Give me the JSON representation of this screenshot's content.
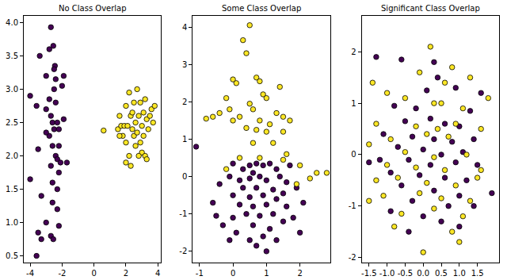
{
  "chart_data": [
    {
      "type": "scatter",
      "title": "No Class Overlap",
      "marker": "circle",
      "xlim": [
        -4.4,
        4.2
      ],
      "xticks": [
        -4,
        -2,
        0,
        2,
        4
      ],
      "ylim": [
        0.4,
        4.1
      ],
      "yticks": [
        0.5,
        {
          "value": 1.0,
          "label": "1.0"
        },
        1.5,
        {
          "value": 2.0,
          "label": "2.0"
        },
        2.5,
        {
          "value": 3.0,
          "label": "3.0"
        },
        3.5,
        {
          "value": 4.0,
          "label": "4.0"
        }
      ],
      "series": [
        {
          "color": "#440154",
          "x": [
            -2.7,
            -2.55,
            -3.4,
            -2.8,
            -2.45,
            -2.5,
            -2.4,
            -1.9,
            -3.0,
            -2.5,
            -2.0,
            -4.0,
            -3.6,
            -2.8,
            -2.4,
            -3.0,
            -2.7,
            -2.6,
            -2.3,
            -1.9,
            -2.5,
            -2.2,
            -2.8,
            -3.0,
            -2.6,
            -2.2,
            -2.4,
            -3.5,
            -2.3,
            -2.1,
            -2.7,
            -1.7,
            -2.2,
            -2.6,
            -4.0,
            -3.3,
            -2.3,
            -2.6,
            -2.3,
            -3.0,
            -2.2,
            -3.5,
            -2.7,
            -3.3,
            -2.55,
            -3.6
          ],
          "values": [
            3.93,
            3.65,
            3.5,
            3.6,
            3.35,
            3.3,
            3.15,
            3.2,
            3.2,
            3.0,
            3.05,
            2.9,
            2.75,
            2.85,
            2.8,
            2.7,
            2.6,
            2.5,
            2.5,
            2.55,
            2.4,
            2.4,
            2.3,
            2.35,
            2.15,
            2.15,
            2.0,
            2.1,
            1.95,
            1.9,
            1.85,
            1.9,
            1.75,
            1.6,
            1.65,
            1.4,
            1.5,
            1.3,
            1.2,
            1.0,
            0.95,
            0.85,
            0.8,
            0.75,
            0.75,
            0.5
          ]
        },
        {
          "color": "#fde725",
          "x": [
            0.6,
            1.5,
            1.6,
            1.7,
            1.8,
            1.9,
            2.0,
            2.0,
            2.1,
            2.2,
            2.2,
            2.3,
            2.4,
            2.5,
            2.5,
            2.6,
            2.6,
            2.7,
            2.7,
            2.8,
            2.9,
            2.9,
            3.0,
            3.0,
            3.1,
            3.1,
            3.2,
            3.2,
            3.3,
            3.4,
            3.5,
            3.6,
            3.8,
            2.0,
            2.3,
            1.6,
            2.4,
            3.3,
            2.8,
            3.7
          ],
          "values": [
            2.38,
            2.4,
            2.6,
            2.45,
            2.3,
            2.45,
            2.75,
            2.2,
            2.45,
            2.95,
            2.0,
            2.6,
            2.4,
            2.8,
            2.3,
            2.15,
            2.5,
            3.0,
            2.35,
            2.6,
            2.2,
            2.8,
            2.45,
            2.05,
            2.65,
            2.3,
            2.85,
            2.0,
            2.55,
            2.4,
            2.6,
            2.7,
            2.75,
            1.9,
            1.85,
            2.3,
            2.65,
            1.95,
            2.0,
            2.5
          ]
        }
      ]
    },
    {
      "type": "scatter",
      "title": "Some Class Overlap",
      "marker": "circle",
      "xlim": [
        -1.2,
        2.9
      ],
      "xticks": [
        -1,
        0,
        1,
        2
      ],
      "ylim": [
        -2.3,
        4.3
      ],
      "yticks": [
        -2,
        -1,
        0,
        1,
        2,
        3,
        4
      ],
      "series": [
        {
          "color": "#440154",
          "x": [
            -1.1,
            0.0,
            0.5,
            0.7,
            0.9,
            1.1,
            0.3,
            0.6,
            1.3,
            1.7,
            -0.1,
            0.2,
            0.5,
            0.8,
            1.0,
            1.4,
            1.6,
            -0.4,
            0.3,
            0.7,
            1.2,
            1.9,
            0.0,
            0.5,
            0.9,
            1.3,
            1.5,
            -0.6,
            0.2,
            0.6,
            1.0,
            1.6,
            2.1,
            0.4,
            0.8,
            1.2,
            0.0,
            1.5,
            0.6,
            1.1,
            -0.3,
            0.9,
            0.5,
            1.3,
            0.1,
            0.7,
            1.0,
            -0.1,
            1.8,
            2.0,
            -0.5
          ],
          "values": [
            0.8,
            0.35,
            0.3,
            0.35,
            0.3,
            0.35,
            0.2,
            0.1,
            0.2,
            0.3,
            0.0,
            -0.1,
            -0.05,
            0.0,
            -0.1,
            0.0,
            -0.15,
            -0.2,
            -0.3,
            -0.3,
            -0.35,
            -0.3,
            -0.5,
            -0.55,
            -0.5,
            -0.6,
            -0.45,
            -0.7,
            -0.75,
            -0.8,
            -0.75,
            -0.8,
            -0.7,
            -1.0,
            -1.05,
            -1.0,
            -1.1,
            -1.2,
            -1.3,
            -1.4,
            -1.3,
            -1.6,
            -1.7,
            -1.7,
            -1.5,
            -1.85,
            -2.0,
            -1.7,
            -1.1,
            -1.5,
            -1.05
          ]
        },
        {
          "color": "#fde725",
          "x": [
            0.5,
            0.3,
            0.4,
            0.0,
            0.1,
            0.7,
            0.8,
            -0.2,
            0.9,
            1.0,
            1.4,
            -0.8,
            -0.6,
            -0.4,
            -0.1,
            0.5,
            0.6,
            1.3,
            1.5,
            1.7,
            0.2,
            0.8,
            1.1,
            0.0,
            0.4,
            0.7,
            1.0,
            1.5,
            0.6,
            1.2,
            1.6,
            0.2,
            -0.2,
            2.0,
            2.5,
            2.8,
            2.3,
            1.9,
            0.8,
            1.5
          ],
          "values": [
            4.05,
            3.65,
            3.3,
            2.6,
            2.5,
            2.65,
            2.55,
            2.1,
            2.2,
            2.1,
            2.4,
            1.55,
            1.6,
            1.7,
            1.8,
            1.95,
            1.8,
            1.7,
            1.6,
            1.5,
            1.6,
            1.5,
            1.4,
            1.5,
            1.3,
            1.25,
            1.2,
            1.2,
            0.9,
            0.9,
            0.6,
            0.5,
            0.2,
            0.3,
            0.1,
            0.1,
            -0.05,
            -0.2,
            0.5,
            0.45
          ]
        }
      ]
    },
    {
      "type": "scatter",
      "title": "Significant Class Overlap",
      "marker": "circle",
      "xlim": [
        -1.7,
        2.1
      ],
      "xticks": [
        -1.5,
        {
          "value": -1.0,
          "label": "-1.0"
        },
        -0.5,
        {
          "value": 0.0,
          "label": "0.0"
        },
        0.5,
        {
          "value": 1.0,
          "label": "1.0"
        },
        1.5
      ],
      "ylim": [
        -2.1,
        2.7
      ],
      "yticks": [
        -2,
        -1,
        0,
        1,
        2
      ],
      "series": [
        {
          "color": "#440154",
          "x": [
            -1.3,
            -0.6,
            0.3,
            0.4,
            0.1,
            0.9,
            1.3,
            1.6,
            -0.8,
            -0.2,
            0.2,
            -0.5,
            0.6,
            1.0,
            -1.1,
            -0.3,
            0.3,
            0.8,
            1.4,
            -0.7,
            0.0,
            0.5,
            1.1,
            -1.2,
            -0.4,
            0.2,
            0.9,
            1.5,
            -0.9,
            -0.1,
            0.6,
            1.2,
            -0.6,
            0.3,
            1.0,
            -0.3,
            0.7,
            1.4,
            -0.9,
            0.0,
            0.5,
            1.0,
            -0.4,
            1.9,
            -1.5
          ],
          "values": [
            1.9,
            1.85,
            1.8,
            1.5,
            1.25,
            1.3,
            0.85,
            1.2,
            0.95,
            0.9,
            0.7,
            0.65,
            0.6,
            0.55,
            0.4,
            0.35,
            0.3,
            0.25,
            0.3,
            0.15,
            0.1,
            0.0,
            0.05,
            -0.1,
            -0.1,
            -0.2,
            -0.15,
            -0.2,
            -0.35,
            -0.4,
            -0.45,
            -0.5,
            -0.6,
            -0.7,
            -0.8,
            -0.9,
            -1.0,
            -1.0,
            -1.1,
            -1.2,
            -1.3,
            -1.4,
            -1.5,
            -0.75,
            -0.15
          ]
        },
        {
          "color": "#fde725",
          "x": [
            -1.4,
            0.2,
            0.5,
            -0.1,
            0.8,
            0.6,
            1.3,
            -1.0,
            -0.5,
            0.3,
            1.1,
            1.8,
            -1.3,
            -0.2,
            0.4,
            0.9,
            -0.9,
            0.1,
            0.7,
            1.6,
            -1.5,
            -0.5,
            0.3,
            1.2,
            -1.0,
            -0.2,
            0.6,
            1.5,
            -1.3,
            -0.7,
            0.1,
            0.9,
            -1.1,
            -0.1,
            0.5,
            1.3,
            -0.6,
            0.3,
            1.1,
            -1.5,
            0.8,
            1.0,
            0.0,
            -0.8,
            1.6
          ],
          "values": [
            1.4,
            2.1,
            1.0,
            1.6,
            1.7,
            1.4,
            1.5,
            1.2,
            1.1,
            1.0,
            0.9,
            1.1,
            0.6,
            0.55,
            0.5,
            0.6,
            0.3,
            0.4,
            0.35,
            0.5,
            0.2,
            0.05,
            -0.05,
            0.0,
            -0.2,
            -0.25,
            -0.3,
            -0.45,
            -0.5,
            -0.45,
            -0.55,
            -0.6,
            -0.8,
            -0.75,
            -0.85,
            -0.9,
            -1.15,
            -1.05,
            -1.2,
            -0.9,
            -1.5,
            -1.7,
            -1.9,
            -1.4,
            -0.3
          ]
        }
      ]
    }
  ]
}
